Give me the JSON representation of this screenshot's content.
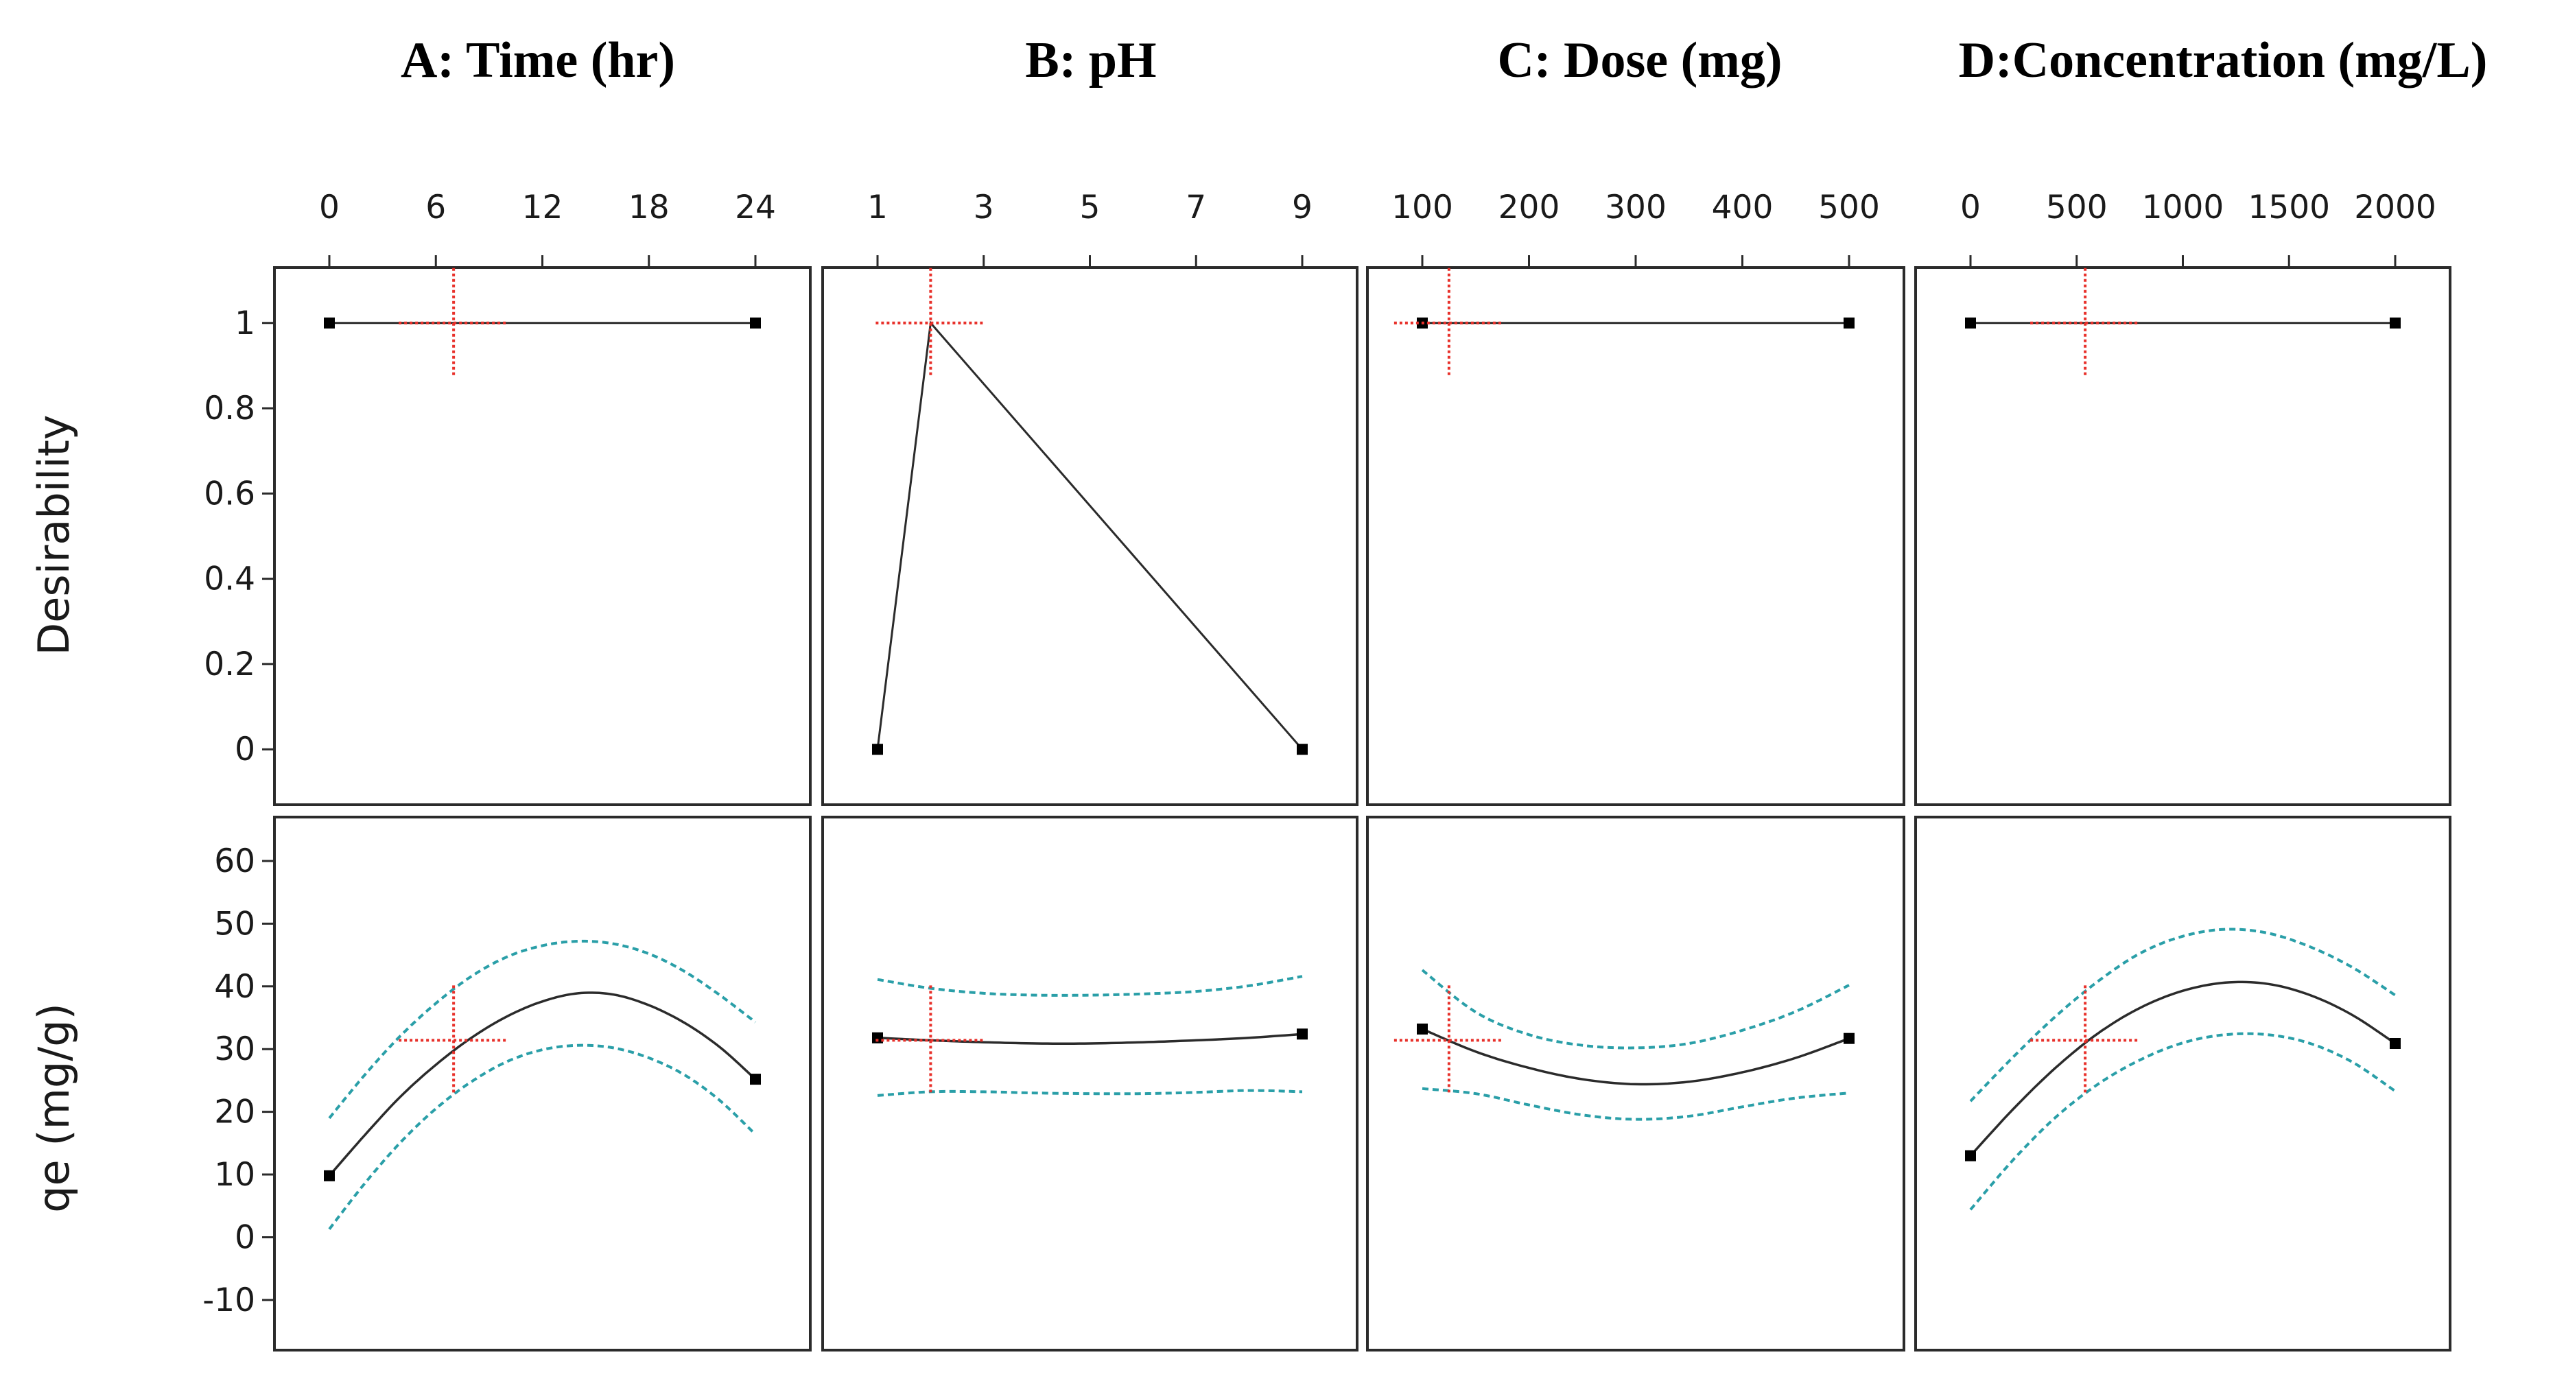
{
  "chart_data": {
    "type": "line",
    "figure": "Optimization desirability and response plots for qe",
    "factors": [
      {
        "title": "A: Time (hr)",
        "ticks": [
          0,
          6,
          12,
          18,
          24
        ],
        "range": [
          0,
          24
        ],
        "optimum": 7,
        "desirability": {
          "x": [
            0,
            24
          ],
          "y": [
            1,
            1
          ]
        },
        "qe": {
          "x": [
            0,
            2,
            4,
            6,
            8,
            10,
            12,
            14,
            16,
            18,
            20,
            22,
            24
          ],
          "mean": [
            9.8,
            16.3,
            22.4,
            27.5,
            31.8,
            35.2,
            37.6,
            38.9,
            38.7,
            37.0,
            34.2,
            30.3,
            25.2
          ],
          "upper": [
            19.0,
            25.9,
            32.1,
            37.3,
            41.6,
            44.7,
            46.5,
            47.2,
            46.8,
            45.2,
            42.4,
            38.6,
            34.3
          ],
          "lower": [
            1.3,
            8.6,
            15.1,
            20.5,
            24.8,
            28.0,
            29.9,
            30.6,
            30.2,
            28.6,
            25.9,
            21.8,
            16.4
          ],
          "endpoints": [
            [
              0,
              9.8
            ],
            [
              24,
              25.2
            ]
          ],
          "optimum_qe": 31.4
        }
      },
      {
        "title": "B: pH",
        "ticks": [
          1,
          3,
          5,
          7,
          9
        ],
        "range": [
          1,
          9
        ],
        "optimum": 2,
        "desirability": {
          "x": [
            1,
            2,
            9
          ],
          "y": [
            0,
            1,
            0
          ]
        },
        "qe": {
          "x": [
            1,
            2,
            3,
            4,
            5,
            6,
            7,
            8,
            9
          ],
          "mean": [
            31.8,
            31.4,
            31.1,
            30.9,
            30.9,
            31.1,
            31.4,
            31.8,
            32.4
          ],
          "upper": [
            41.1,
            39.7,
            38.9,
            38.6,
            38.6,
            38.8,
            39.2,
            40.1,
            41.6
          ],
          "lower": [
            22.6,
            23.2,
            23.2,
            23.0,
            22.9,
            22.9,
            23.1,
            23.4,
            23.2
          ],
          "endpoints": [
            [
              1,
              31.8
            ],
            [
              9,
              32.4
            ]
          ],
          "optimum_qe": 31.4
        }
      },
      {
        "title": "C: Dose (mg)",
        "ticks": [
          100,
          200,
          300,
          400,
          500
        ],
        "range": [
          100,
          500
        ],
        "optimum": 125,
        "desirability": {
          "x": [
            100,
            500
          ],
          "y": [
            1,
            1
          ]
        },
        "qe": {
          "x": [
            100,
            150,
            200,
            250,
            300,
            350,
            400,
            450,
            500
          ],
          "mean": [
            33.2,
            29.6,
            27.0,
            25.2,
            24.4,
            24.8,
            26.3,
            28.6,
            31.7
          ],
          "upper": [
            42.6,
            35.9,
            32.3,
            30.6,
            30.2,
            30.9,
            33.0,
            36.0,
            40.2
          ],
          "lower": [
            23.7,
            22.9,
            21.1,
            19.5,
            18.8,
            19.3,
            20.8,
            22.2,
            23.0
          ],
          "endpoints": [
            [
              100,
              33.2
            ],
            [
              500,
              31.7
            ]
          ],
          "optimum_qe": 31.4
        }
      },
      {
        "title": "D:Concentration (mg/L)",
        "ticks": [
          0,
          500,
          1000,
          1500,
          2000
        ],
        "range": [
          0,
          2000
        ],
        "optimum": 540,
        "desirability": {
          "x": [
            0,
            2000
          ],
          "y": [
            1,
            1
          ]
        },
        "qe": {
          "x": [
            0,
            200,
            400,
            600,
            800,
            1000,
            1200,
            1400,
            1600,
            1800,
            2000
          ],
          "mean": [
            13.0,
            20.4,
            27.0,
            32.5,
            36.6,
            39.3,
            40.6,
            40.4,
            38.6,
            35.4,
            30.9
          ],
          "upper": [
            21.7,
            28.7,
            35.2,
            40.8,
            45.3,
            48.0,
            49.1,
            48.5,
            46.3,
            43.0,
            38.6
          ],
          "lower": [
            4.4,
            12.3,
            19.1,
            24.4,
            28.3,
            31.0,
            32.3,
            32.3,
            30.9,
            27.9,
            23.3
          ],
          "endpoints": [
            [
              0,
              13.0
            ],
            [
              2000,
              30.9
            ]
          ],
          "optimum_qe": 31.4
        }
      }
    ],
    "rows": [
      {
        "ylabel": "Desirability",
        "yticks": [
          0,
          0.2,
          0.4,
          0.6,
          0.8,
          1
        ],
        "ylim": [
          -0.13,
          1.13
        ]
      },
      {
        "ylabel": "qe (mg/g)",
        "yticks": [
          -10,
          0,
          10,
          20,
          30,
          40,
          50,
          60
        ],
        "ylim": [
          -18,
          67
        ]
      }
    ],
    "colors": {
      "line": "#2b2b2b",
      "interval": "#2a9fa8",
      "optimum": "#e8302a",
      "frame": "#2b2b2b"
    }
  }
}
